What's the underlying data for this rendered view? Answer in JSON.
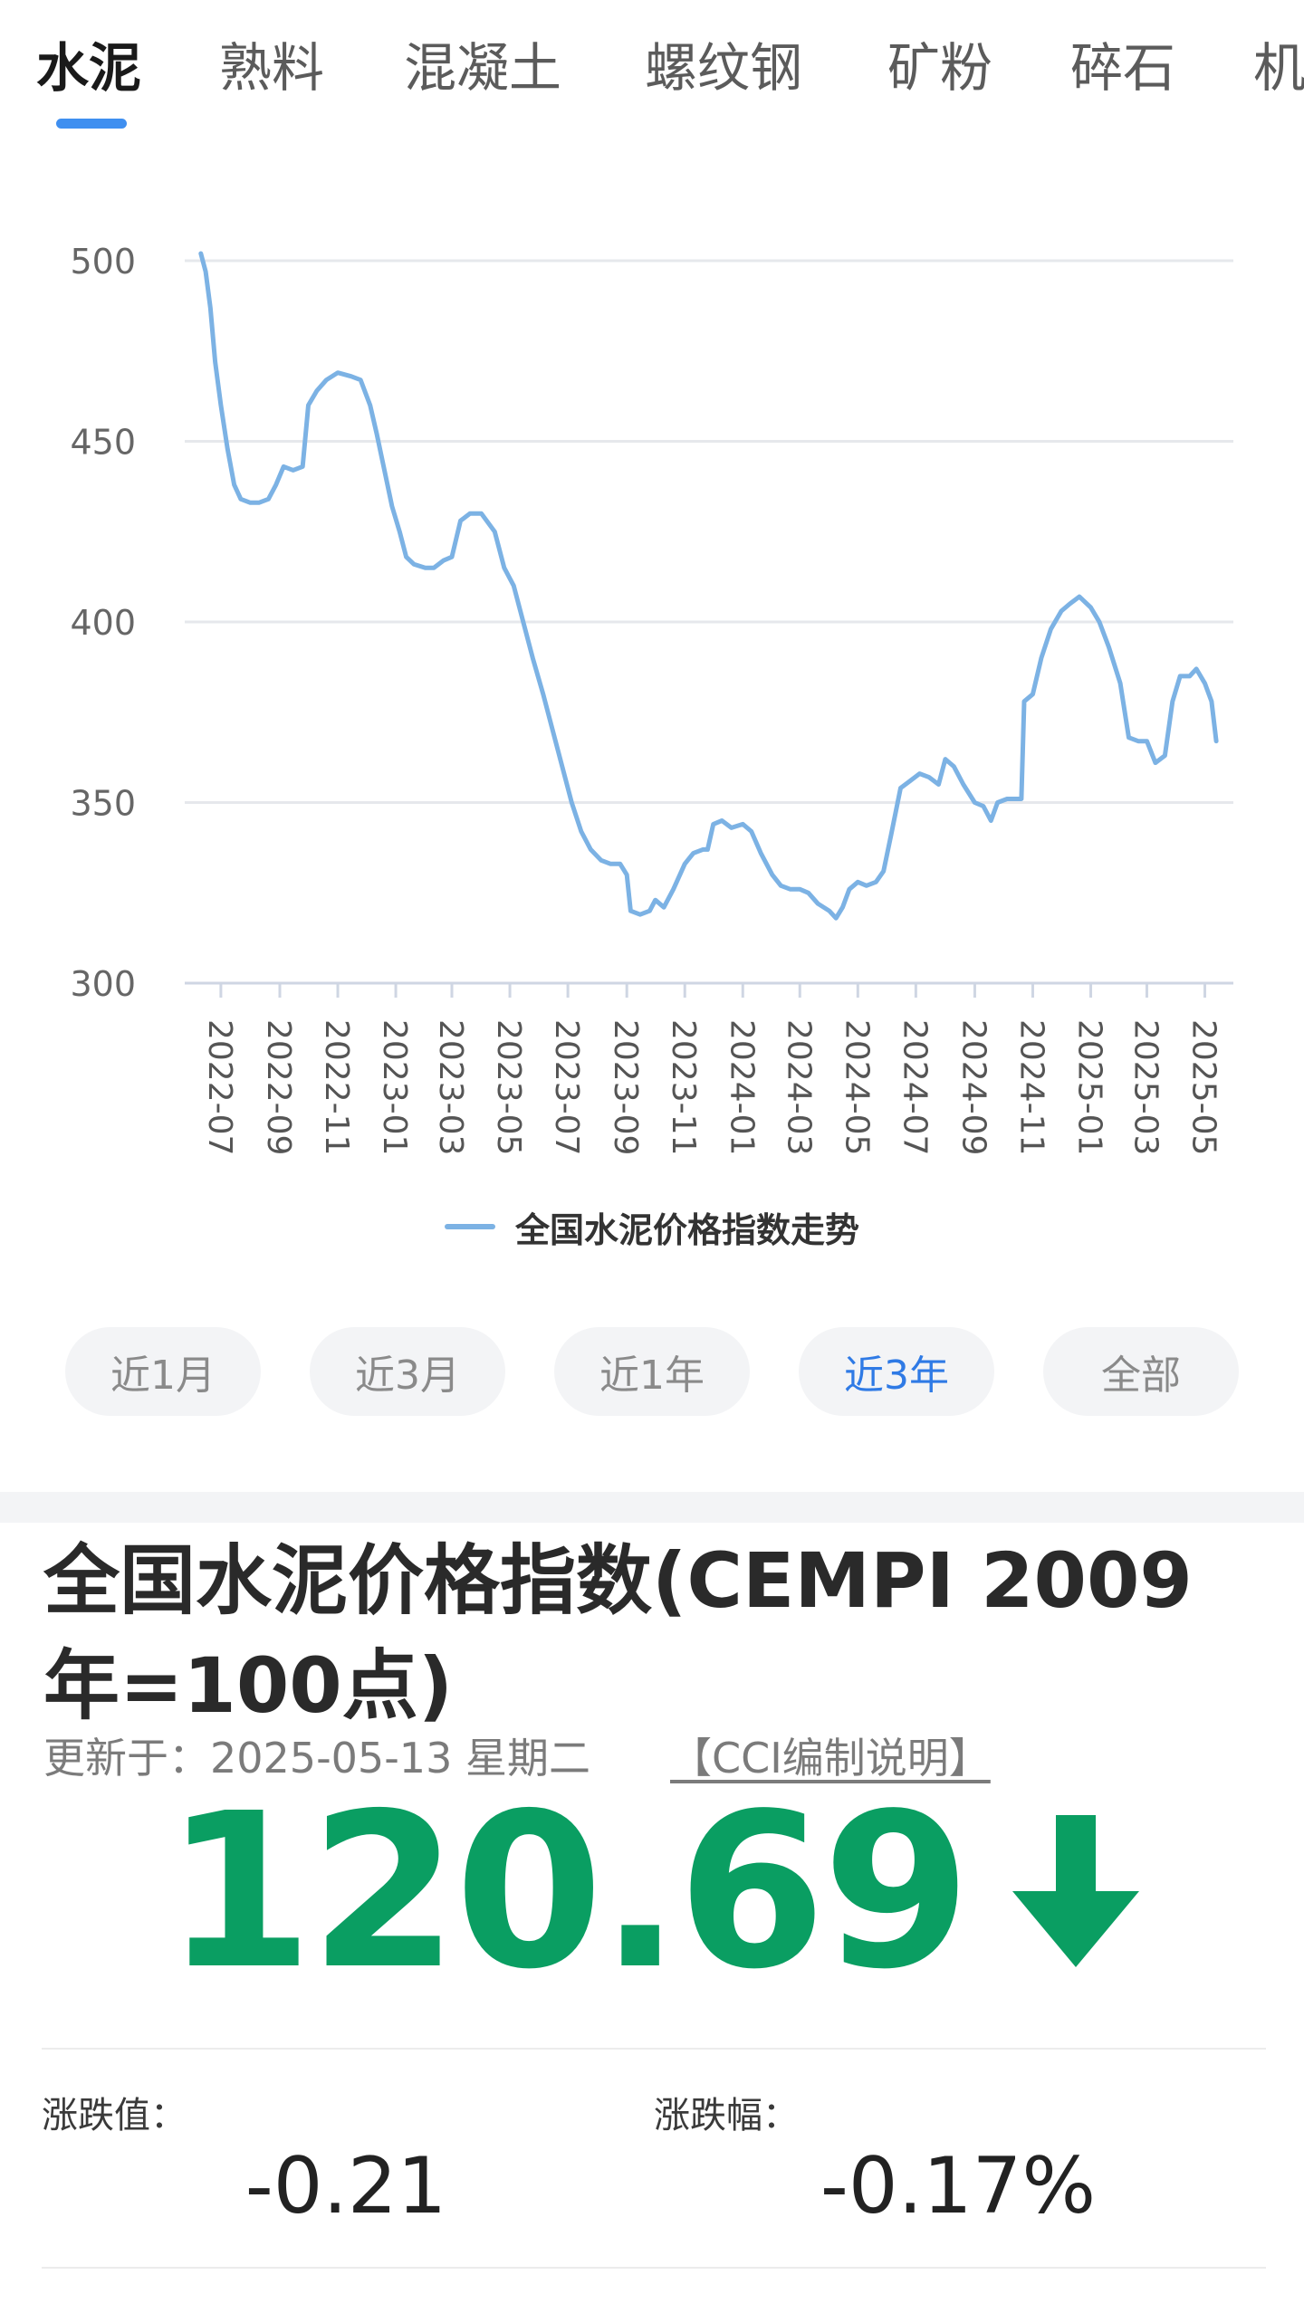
{
  "tabs": [
    {
      "label": "水泥",
      "active": true
    },
    {
      "label": "熟料"
    },
    {
      "label": "混凝土"
    },
    {
      "label": "螺纹钢"
    },
    {
      "label": "矿粉"
    },
    {
      "label": "碎石"
    },
    {
      "label": "机"
    }
  ],
  "chart_data": {
    "type": "line",
    "series": [
      {
        "name": "全国水泥价格指数走势",
        "color": "#7cb2e4",
        "points": [
          [
            "2022-06-10",
            502
          ],
          [
            "2022-06-15",
            497
          ],
          [
            "2022-06-20",
            487
          ],
          [
            "2022-06-25",
            472
          ],
          [
            "2022-07-01",
            460
          ],
          [
            "2022-07-08",
            448
          ],
          [
            "2022-07-15",
            438
          ],
          [
            "2022-07-22",
            434
          ],
          [
            "2022-08-01",
            433
          ],
          [
            "2022-08-10",
            433
          ],
          [
            "2022-08-20",
            434
          ],
          [
            "2022-08-28",
            438
          ],
          [
            "2022-09-05",
            443
          ],
          [
            "2022-09-15",
            442
          ],
          [
            "2022-09-25",
            443
          ],
          [
            "2022-10-01",
            460
          ],
          [
            "2022-10-10",
            464
          ],
          [
            "2022-10-20",
            467
          ],
          [
            "2022-11-01",
            469
          ],
          [
            "2022-11-15",
            468
          ],
          [
            "2022-11-25",
            467
          ],
          [
            "2022-12-05",
            460
          ],
          [
            "2022-12-12",
            452
          ],
          [
            "2022-12-20",
            442
          ],
          [
            "2022-12-28",
            432
          ],
          [
            "2023-01-05",
            425
          ],
          [
            "2023-01-12",
            418
          ],
          [
            "2023-01-20",
            416
          ],
          [
            "2023-02-01",
            415
          ],
          [
            "2023-02-10",
            415
          ],
          [
            "2023-02-20",
            417
          ],
          [
            "2023-03-01",
            418
          ],
          [
            "2023-03-10",
            428
          ],
          [
            "2023-03-20",
            430
          ],
          [
            "2023-04-01",
            430
          ],
          [
            "2023-04-15",
            425
          ],
          [
            "2023-04-25",
            415
          ],
          [
            "2023-05-05",
            410
          ],
          [
            "2023-05-15",
            400
          ],
          [
            "2023-05-25",
            390
          ],
          [
            "2023-06-05",
            380
          ],
          [
            "2023-06-15",
            370
          ],
          [
            "2023-06-25",
            360
          ],
          [
            "2023-07-05",
            350
          ],
          [
            "2023-07-15",
            342
          ],
          [
            "2023-07-25",
            337
          ],
          [
            "2023-08-05",
            334
          ],
          [
            "2023-08-15",
            333
          ],
          [
            "2023-08-25",
            333
          ],
          [
            "2023-09-01",
            330
          ],
          [
            "2023-09-05",
            320
          ],
          [
            "2023-09-15",
            319
          ],
          [
            "2023-09-25",
            320
          ],
          [
            "2023-10-01",
            323
          ],
          [
            "2023-10-10",
            321
          ],
          [
            "2023-10-20",
            326
          ],
          [
            "2023-11-01",
            333
          ],
          [
            "2023-11-10",
            336
          ],
          [
            "2023-11-20",
            337
          ],
          [
            "2023-11-25",
            337
          ],
          [
            "2023-12-01",
            344
          ],
          [
            "2023-12-10",
            345
          ],
          [
            "2023-12-20",
            343
          ],
          [
            "2024-01-01",
            344
          ],
          [
            "2024-01-10",
            342
          ],
          [
            "2024-01-20",
            336
          ],
          [
            "2024-02-01",
            330
          ],
          [
            "2024-02-10",
            327
          ],
          [
            "2024-02-20",
            326
          ],
          [
            "2024-03-01",
            326
          ],
          [
            "2024-03-10",
            325
          ],
          [
            "2024-03-20",
            322
          ],
          [
            "2024-04-01",
            320
          ],
          [
            "2024-04-08",
            318
          ],
          [
            "2024-04-15",
            321
          ],
          [
            "2024-04-22",
            326
          ],
          [
            "2024-05-01",
            328
          ],
          [
            "2024-05-10",
            327
          ],
          [
            "2024-05-20",
            328
          ],
          [
            "2024-05-28",
            331
          ],
          [
            "2024-06-05",
            341
          ],
          [
            "2024-06-15",
            354
          ],
          [
            "2024-06-25",
            356
          ],
          [
            "2024-07-05",
            358
          ],
          [
            "2024-07-15",
            357
          ],
          [
            "2024-07-25",
            355
          ],
          [
            "2024-08-01",
            362
          ],
          [
            "2024-08-10",
            360
          ],
          [
            "2024-08-20",
            355
          ],
          [
            "2024-09-01",
            350
          ],
          [
            "2024-09-10",
            349
          ],
          [
            "2024-09-18",
            345
          ],
          [
            "2024-09-25",
            350
          ],
          [
            "2024-10-05",
            351
          ],
          [
            "2024-10-15",
            351
          ],
          [
            "2024-10-20",
            351
          ],
          [
            "2024-10-23",
            378
          ],
          [
            "2024-11-01",
            380
          ],
          [
            "2024-11-10",
            390
          ],
          [
            "2024-11-20",
            398
          ],
          [
            "2024-12-01",
            403
          ],
          [
            "2024-12-10",
            405
          ],
          [
            "2024-12-20",
            407
          ],
          [
            "2025-01-01",
            404
          ],
          [
            "2025-01-10",
            400
          ],
          [
            "2025-01-20",
            393
          ],
          [
            "2025-02-01",
            383
          ],
          [
            "2025-02-10",
            368
          ],
          [
            "2025-02-20",
            367
          ],
          [
            "2025-03-01",
            367
          ],
          [
            "2025-03-10",
            361
          ],
          [
            "2025-03-20",
            363
          ],
          [
            "2025-03-28",
            378
          ],
          [
            "2025-04-05",
            385
          ],
          [
            "2025-04-15",
            385
          ],
          [
            "2025-04-22",
            387
          ],
          [
            "2025-05-01",
            383
          ],
          [
            "2025-05-08",
            378
          ],
          [
            "2025-05-13",
            367
          ]
        ]
      }
    ],
    "x_ticks": [
      "2022-07",
      "2022-09",
      "2022-11",
      "2023-01",
      "2023-03",
      "2023-05",
      "2023-07",
      "2023-09",
      "2023-11",
      "2024-01",
      "2024-03",
      "2024-05",
      "2024-07",
      "2024-09",
      "2024-11",
      "2025-01",
      "2025-03",
      "2025-05"
    ],
    "y_ticks": [
      "500",
      "450",
      "400",
      "350",
      "300"
    ],
    "ylim": [
      300,
      500
    ],
    "xlim": [
      "2022-05-24",
      "2025-05-31"
    ],
    "grid": true,
    "legend_position": "bottom-center"
  },
  "legend": {
    "label": "全国水泥价格指数走势"
  },
  "ranges": [
    {
      "label": "近1月"
    },
    {
      "label": "近3月"
    },
    {
      "label": "近1年"
    },
    {
      "label": "近3年",
      "active": true
    },
    {
      "label": "全部"
    }
  ],
  "info": {
    "title": "全国水泥价格指数(CEMPI 2009年=100点)",
    "updated": "更新于：2025-05-13 星期二",
    "cci_link": "【CCI编制说明】",
    "value": "120.69",
    "trend_icon": "arrow-down-icon",
    "value_color": "#0a9e62",
    "change_label": "涨跌值：",
    "change_value": "-0.21",
    "pct_label": "涨跌幅：",
    "pct_value": "-0.17%"
  }
}
